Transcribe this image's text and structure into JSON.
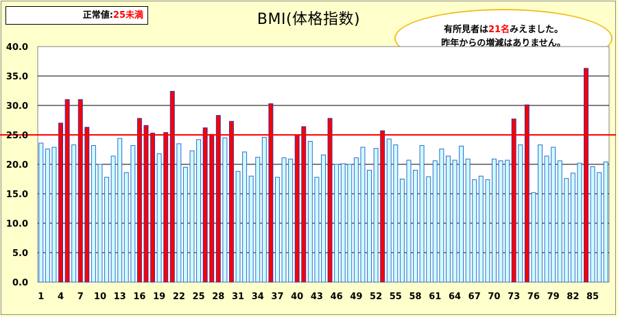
{
  "note": {
    "prefix": "正常値:",
    "value": "25未満"
  },
  "callout": {
    "line1_prefix": "有所見者は",
    "line1_count": "21名",
    "line1_suffix": "みえました。",
    "line2": "昨年からの増減はありません。"
  },
  "colors": {
    "normal_bar": "#ccffff",
    "normal_border": "#3366cc",
    "abnormal_bar": "#ff0000",
    "abnormal_border": "#3333aa",
    "threshold_line": "#ff0000",
    "background": "#ffffcc"
  },
  "chart_data": {
    "type": "bar",
    "title": "BMI(体格指数)",
    "xlabel": "",
    "ylabel": "",
    "ylim": [
      0,
      40
    ],
    "yticks": [
      "0.0",
      "5.0",
      "10.0",
      "15.0",
      "20.0",
      "25.0",
      "30.0",
      "35.0",
      "40.0"
    ],
    "xtick_labels": [
      "1",
      "4",
      "7",
      "10",
      "13",
      "16",
      "19",
      "22",
      "25",
      "28",
      "31",
      "34",
      "37",
      "40",
      "43",
      "46",
      "49",
      "52",
      "55",
      "58",
      "61",
      "64",
      "67",
      "70",
      "73",
      "76",
      "79",
      "82",
      "85"
    ],
    "threshold": 25,
    "grid": true,
    "values": [
      23.6,
      22.6,
      22.9,
      27.0,
      31.0,
      23.3,
      31.0,
      26.3,
      23.2,
      20.0,
      17.8,
      21.4,
      24.4,
      18.6,
      23.2,
      27.8,
      26.6,
      25.3,
      21.8,
      25.4,
      32.4,
      23.5,
      19.5,
      22.3,
      24.2,
      26.2,
      25.1,
      28.3,
      24.5,
      27.3,
      18.8,
      22.1,
      18.0,
      21.2,
      24.6,
      30.3,
      17.8,
      21.1,
      20.9,
      25.0,
      26.4,
      23.9,
      17.8,
      21.6,
      27.8,
      20.0,
      20.1,
      20.0,
      21.1,
      22.9,
      19.0,
      22.7,
      25.7,
      24.3,
      23.3,
      17.5,
      20.7,
      19.0,
      23.2,
      17.9,
      20.6,
      22.6,
      21.4,
      20.7,
      23.1,
      20.9,
      17.4,
      18.0,
      17.4,
      20.9,
      20.6,
      20.7,
      27.7,
      23.3,
      30.1,
      15.2,
      23.3,
      21.4,
      22.9,
      20.6,
      17.6,
      18.5,
      20.2,
      36.3,
      19.6,
      18.6,
      20.4
    ]
  }
}
